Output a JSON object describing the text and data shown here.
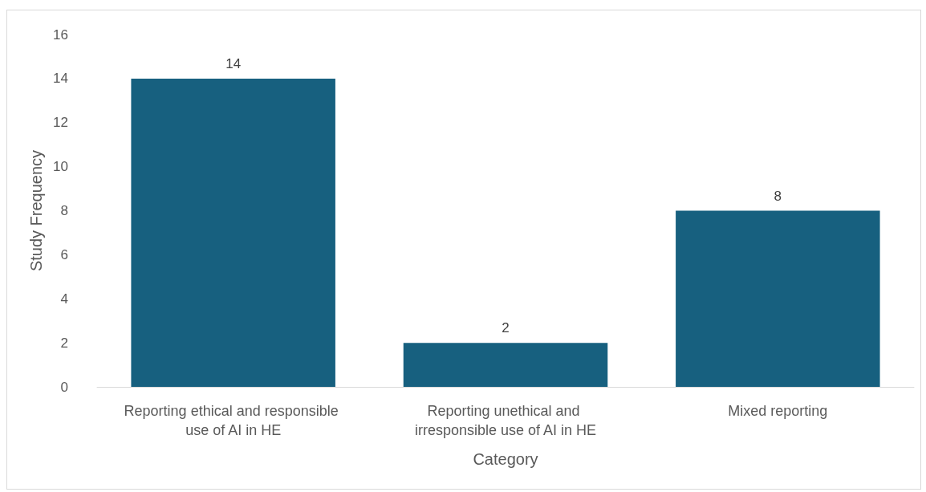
{
  "chart_data": {
    "type": "bar",
    "xlabel": "Category",
    "ylabel": "Study Frequency",
    "categories": [
      "Reporting ethical and responsible use of AI in HE",
      "Reporting unethical and irresponsible use of AI in HE",
      "Mixed reporting"
    ],
    "values": [
      14,
      2,
      8
    ],
    "color": "#17607f",
    "data_labels": true,
    "ylim": [
      0,
      16
    ],
    "yticks": [
      0,
      2,
      4,
      6,
      8,
      10,
      12,
      14,
      16
    ],
    "grid": false
  }
}
